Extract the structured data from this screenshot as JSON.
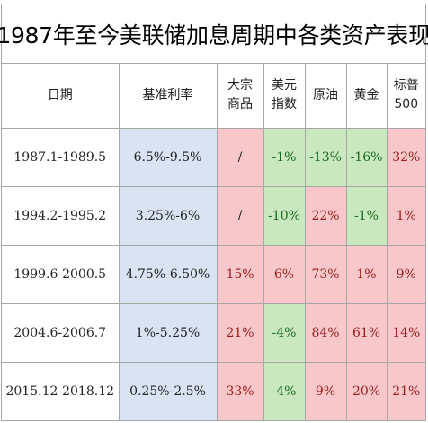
{
  "title": "1987年至今美联储加息周期中各类资产表现",
  "headers": {
    "date": "日期",
    "rate": "基准利率",
    "commodity": [
      "大宗",
      "商品"
    ],
    "usd": [
      "美元",
      "指数"
    ],
    "oil": "原油",
    "gold": "黄金",
    "sp500": [
      "标普",
      "500"
    ]
  },
  "rows": [
    {
      "date": "1987.1-1989.5",
      "rate": "6.5%-9.5%",
      "commodity": "/",
      "usd": "-1%",
      "oil": "-13%",
      "gold": "-16%",
      "sp500": "32%"
    },
    {
      "date": "1994.2-1995.2",
      "rate": "3.25%-6%",
      "commodity": "/",
      "usd": "-10%",
      "oil": "22%",
      "gold": "-1%",
      "sp500": "1%"
    },
    {
      "date": "1999.6-2000.5",
      "rate": "4.75%-6.50%",
      "commodity": "15%",
      "usd": "6%",
      "oil": "73%",
      "gold": "1%",
      "sp500": "9%"
    },
    {
      "date": "2004.6-2006.7",
      "rate": "1%-5.25%",
      "commodity": "21%",
      "usd": "-4%",
      "oil": "84%",
      "gold": "61%",
      "sp500": "14%"
    },
    {
      "date": "2015.12-2018.12",
      "rate": "0.25%-2.5%",
      "commodity": "33%",
      "usd": "-4%",
      "oil": "9%",
      "gold": "20%",
      "sp500": "21%"
    }
  ],
  "colors": {
    "rate_bg": "#dae3f3",
    "positive_bg": "#f7c7c9",
    "negative_bg": "#c9e8c0",
    "border": "#a6a6a6"
  }
}
